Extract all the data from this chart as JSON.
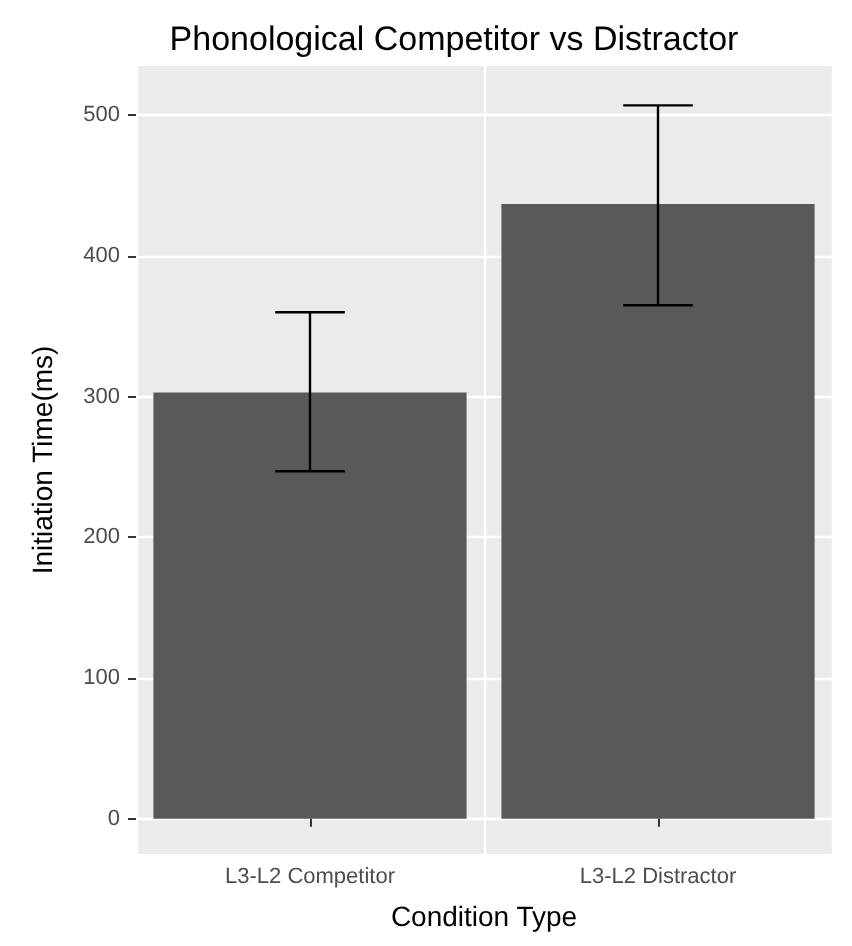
{
  "chart_data": {
    "type": "bar",
    "title": "Phonological Competitor vs Distractor",
    "xlabel": "Condition Type",
    "ylabel": "Initiation Time(ms)",
    "categories": [
      "L3-L2 Competitor",
      "L3-L2 Distractor"
    ],
    "values": [
      303,
      437
    ],
    "color": "#595959",
    "errors": [
      [
        247,
        360
      ],
      [
        365,
        507
      ]
    ],
    "ylim": [
      -25,
      535
    ],
    "yticks": [
      0,
      100,
      200,
      300,
      400,
      500
    ],
    "grid": true
  }
}
